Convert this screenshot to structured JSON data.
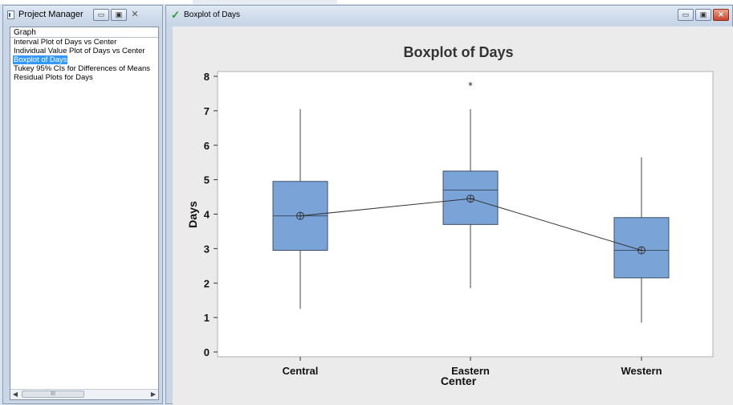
{
  "project_manager": {
    "title": "Project Manager",
    "icon": "project-manager-icon",
    "tree_header": "Graph",
    "items": [
      {
        "label": "Interval Plot of Days vs Center",
        "selected": false
      },
      {
        "label": "Individual Value Plot of Days vs Center",
        "selected": false
      },
      {
        "label": "Boxplot of Days",
        "selected": true
      },
      {
        "label": "Tukey 95% CIs for Differences of Means",
        "selected": false
      },
      {
        "label": "Residual Plots for Days",
        "selected": false
      }
    ],
    "scroll_thumb_glyph": "III"
  },
  "graph_window": {
    "title": "Boxplot of Days",
    "icon": "green-check-icon"
  },
  "colors": {
    "box_fill": "#7aa3d8",
    "box_stroke": "#3d4f66",
    "plot_bg": "#ffffff",
    "canvas_bg": "#ebebeb",
    "selection": "#3399ff"
  },
  "chart_data": {
    "type": "boxplot",
    "title": "Boxplot of Days",
    "xlabel": "Center",
    "ylabel": "Days",
    "ylim": [
      0,
      8
    ],
    "yticks": [
      0,
      1,
      2,
      3,
      4,
      5,
      6,
      7,
      8
    ],
    "grid": false,
    "categories": [
      "Central",
      "Eastern",
      "Western"
    ],
    "boxes": [
      {
        "category": "Central",
        "whisker_low": 1.25,
        "q1": 2.95,
        "median": 3.95,
        "q3": 4.95,
        "whisker_high": 7.05,
        "mean": 3.95,
        "outliers": []
      },
      {
        "category": "Eastern",
        "whisker_low": 1.85,
        "q1": 3.7,
        "median": 4.7,
        "q3": 5.25,
        "whisker_high": 7.05,
        "mean": 4.45,
        "outliers": [
          7.75
        ]
      },
      {
        "category": "Western",
        "whisker_low": 0.85,
        "q1": 2.15,
        "median": 2.95,
        "q3": 3.9,
        "whisker_high": 5.65,
        "mean": 2.95,
        "outliers": []
      }
    ],
    "mean_connect_line": true
  }
}
